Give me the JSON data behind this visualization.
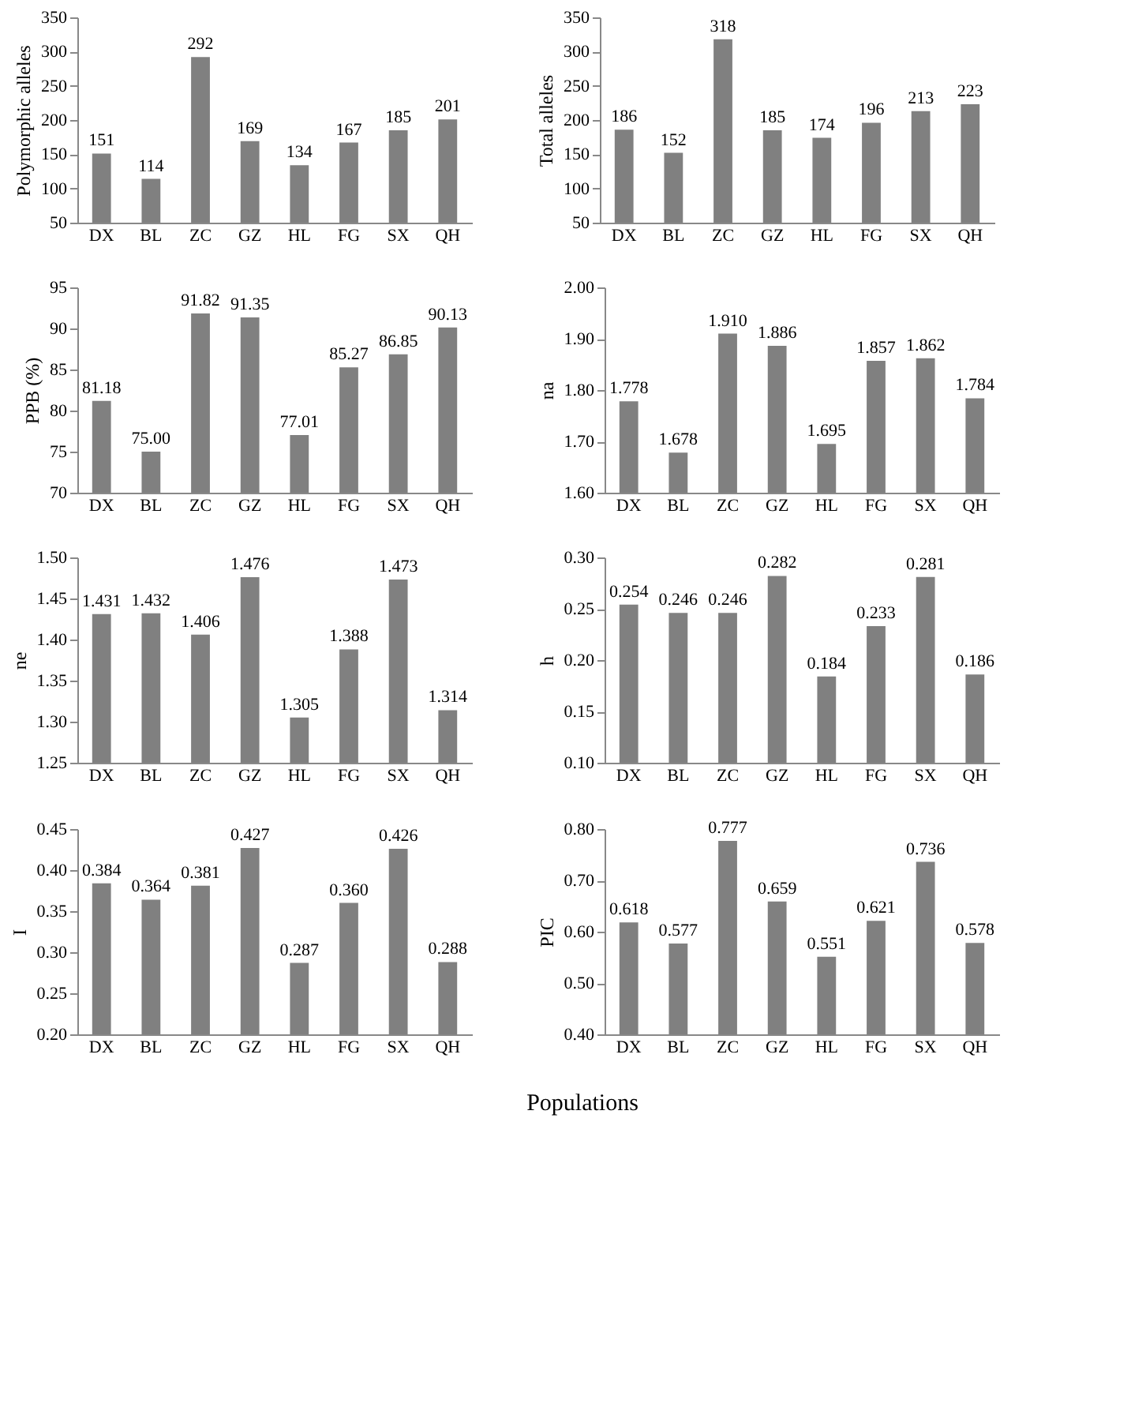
{
  "chart_data": [
    {
      "type": "bar",
      "ylabel": "Polymorphic alleles",
      "categories": [
        "DX",
        "BL",
        "ZC",
        "GZ",
        "HL",
        "FG",
        "SX",
        "QH"
      ],
      "values": [
        151,
        114,
        292,
        169,
        134,
        167,
        185,
        201
      ],
      "color": "#808080",
      "ylim": [
        50,
        350
      ],
      "yticks": [
        50,
        100,
        150,
        200,
        250,
        300,
        350
      ],
      "data_labels": true,
      "grid": false
    },
    {
      "type": "bar",
      "ylabel": "Total alleles",
      "categories": [
        "DX",
        "BL",
        "ZC",
        "GZ",
        "HL",
        "FG",
        "SX",
        "QH"
      ],
      "values": [
        186,
        152,
        318,
        185,
        174,
        196,
        213,
        223
      ],
      "color": "#808080",
      "ylim": [
        50,
        350
      ],
      "yticks": [
        50,
        100,
        150,
        200,
        250,
        300,
        350
      ],
      "data_labels": true,
      "grid": false
    },
    {
      "type": "bar",
      "ylabel": "PPB (%)",
      "categories": [
        "DX",
        "BL",
        "ZC",
        "GZ",
        "HL",
        "FG",
        "SX",
        "QH"
      ],
      "values": [
        81.18,
        75.0,
        91.82,
        91.35,
        77.01,
        85.27,
        86.85,
        90.13
      ],
      "value_labels": [
        "81.18",
        "75.00",
        "91.82",
        "91.35",
        "77.01",
        "85.27",
        "86.85",
        "90.13"
      ],
      "color": "#808080",
      "ylim": [
        70,
        95
      ],
      "yticks": [
        70,
        75,
        80,
        85,
        90,
        95
      ],
      "grid": false
    },
    {
      "type": "bar",
      "ylabel": "na",
      "categories": [
        "DX",
        "BL",
        "ZC",
        "GZ",
        "HL",
        "FG",
        "SX",
        "QH"
      ],
      "values": [
        1.778,
        1.678,
        1.91,
        1.886,
        1.695,
        1.857,
        1.862,
        1.784
      ],
      "value_labels": [
        "1.778",
        "1.678",
        "1.910",
        "1.886",
        "1.695",
        "1.857",
        "1.862",
        "1.784"
      ],
      "color": "#808080",
      "ylim": [
        1.6,
        2.0
      ],
      "yticks": [
        {
          "value": 1.6,
          "label": "1.60"
        },
        {
          "value": 1.7,
          "label": "1.70"
        },
        {
          "value": 1.8,
          "label": "1.80"
        },
        {
          "value": 1.9,
          "label": "1.90"
        },
        {
          "value": 2.0,
          "label": "2.00"
        }
      ],
      "grid": false
    },
    {
      "type": "bar",
      "ylabel": "ne",
      "categories": [
        "DX",
        "BL",
        "ZC",
        "GZ",
        "HL",
        "FG",
        "SX",
        "QH"
      ],
      "values": [
        1.431,
        1.432,
        1.406,
        1.476,
        1.305,
        1.388,
        1.473,
        1.314
      ],
      "data_labels": true,
      "color": "#808080",
      "ylim": [
        1.25,
        1.5
      ],
      "yticks": [
        1.25,
        {
          "value": 1.3,
          "label": "1.30"
        },
        1.35,
        {
          "value": 1.4,
          "label": "1.40"
        },
        1.45,
        {
          "value": 1.5,
          "label": "1.50"
        }
      ],
      "grid": false
    },
    {
      "type": "bar",
      "ylabel": "h",
      "categories": [
        "DX",
        "BL",
        "ZC",
        "GZ",
        "HL",
        "FG",
        "SX",
        "QH"
      ],
      "values": [
        0.254,
        0.246,
        0.246,
        0.282,
        0.184,
        0.233,
        0.281,
        0.186
      ],
      "data_labels": true,
      "color": "#808080",
      "ylim": [
        0.1,
        0.3
      ],
      "yticks": [
        {
          "value": 0.1,
          "label": "0.10"
        },
        0.15,
        {
          "value": 0.2,
          "label": "0.20"
        },
        0.25,
        {
          "value": 0.3,
          "label": "0.30"
        }
      ],
      "grid": false
    },
    {
      "type": "bar",
      "ylabel": "I",
      "categories": [
        "DX",
        "BL",
        "ZC",
        "GZ",
        "HL",
        "FG",
        "SX",
        "QH"
      ],
      "values": [
        0.384,
        0.364,
        0.381,
        0.427,
        0.287,
        0.36,
        0.426,
        0.288
      ],
      "value_labels": [
        "0.384",
        "0.364",
        "0.381",
        "0.427",
        "0.287",
        "0.360",
        "0.426",
        "0.288"
      ],
      "color": "#808080",
      "ylim": [
        0.2,
        0.45
      ],
      "yticks": [
        {
          "value": 0.2,
          "label": "0.20"
        },
        0.25,
        {
          "value": 0.3,
          "label": "0.30"
        },
        0.35,
        {
          "value": 0.4,
          "label": "0.40"
        },
        0.45
      ],
      "grid": false
    },
    {
      "type": "bar",
      "ylabel": "PIC",
      "categories": [
        "DX",
        "BL",
        "ZC",
        "GZ",
        "HL",
        "FG",
        "SX",
        "QH"
      ],
      "values": [
        0.618,
        0.577,
        0.777,
        0.659,
        0.551,
        0.621,
        0.736,
        0.578
      ],
      "data_labels": true,
      "color": "#808080",
      "ylim": [
        0.4,
        0.8
      ],
      "yticks": [
        {
          "value": 0.4,
          "label": "0.40"
        },
        {
          "value": 0.5,
          "label": "0.50"
        },
        {
          "value": 0.6,
          "label": "0.60"
        },
        {
          "value": 0.7,
          "label": "0.70"
        },
        {
          "value": 0.8,
          "label": "0.80"
        }
      ],
      "grid": false,
      "annotations": [
        "Populations"
      ]
    }
  ]
}
